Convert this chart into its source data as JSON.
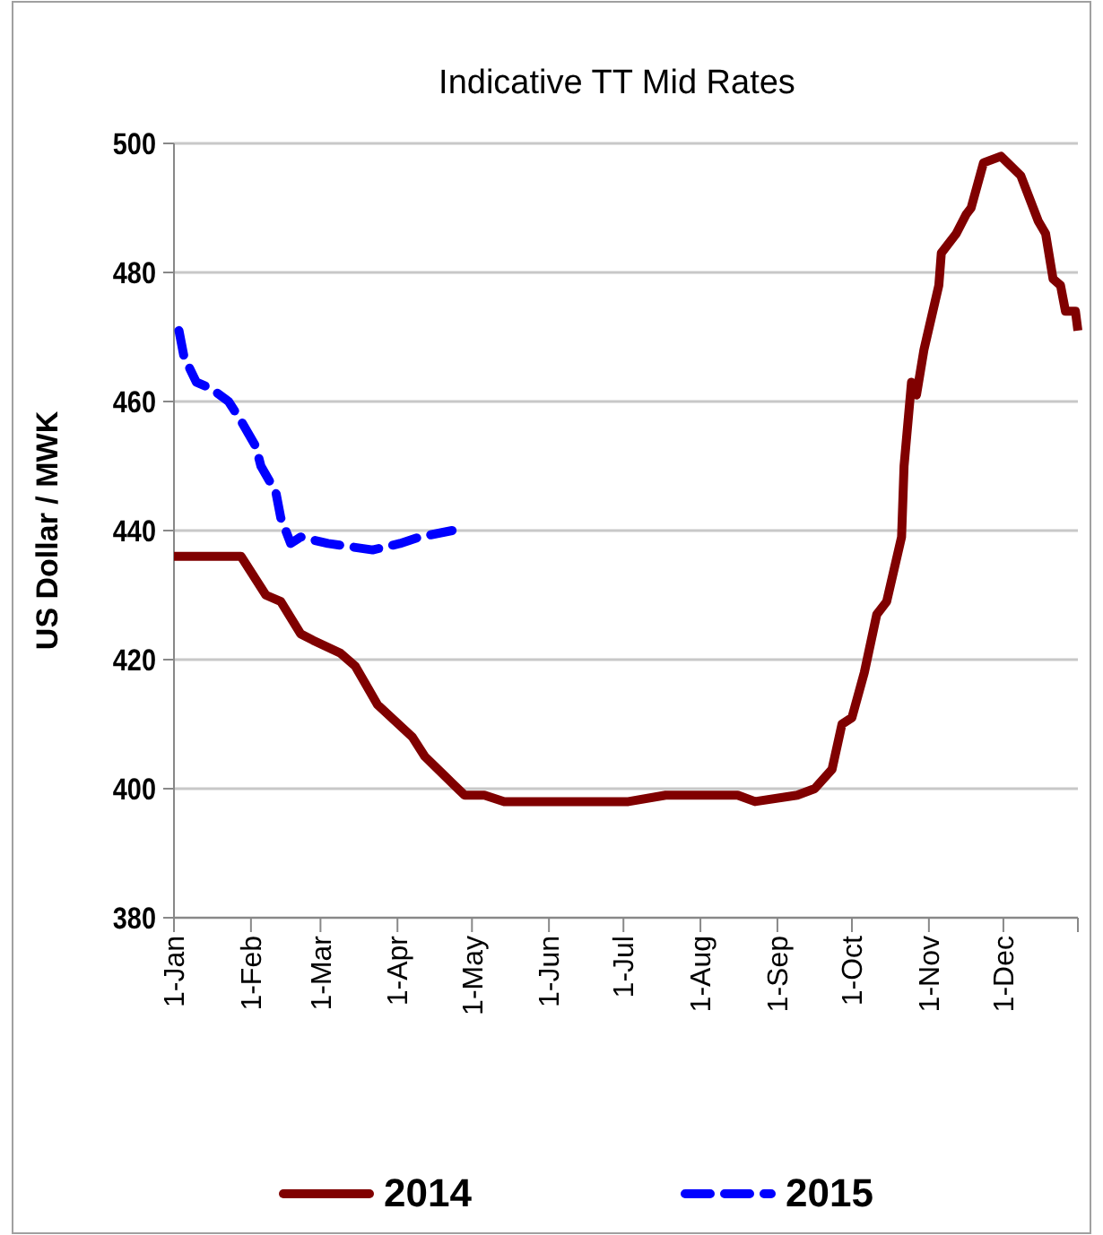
{
  "chart_data": {
    "type": "line",
    "title": "Indicative TT Mid Rates",
    "ylabel": "US Dollar / MWK",
    "xlim": [
      "--01-01",
      "--12-31"
    ],
    "xticks": [
      {
        "value": "--01-01",
        "label": "1-Jan"
      },
      {
        "value": "--02-01",
        "label": "1-Feb"
      },
      {
        "value": "--03-01",
        "label": "1-Mar"
      },
      {
        "value": "--04-01",
        "label": "1-Apr"
      },
      {
        "value": "--05-01",
        "label": "1-May"
      },
      {
        "value": "--06-01",
        "label": "1-Jun"
      },
      {
        "value": "--07-01",
        "label": "1-Jul"
      },
      {
        "value": "--08-01",
        "label": "1-Aug"
      },
      {
        "value": "--09-01",
        "label": "1-Sep"
      },
      {
        "value": "--10-01",
        "label": "1-Oct"
      },
      {
        "value": "--11-01",
        "label": "1-Nov"
      },
      {
        "value": "--12-01",
        "label": "1-Dec"
      }
    ],
    "ylim": [
      380,
      500
    ],
    "yticks": [
      380,
      400,
      420,
      440,
      460,
      480,
      500
    ],
    "grid": "y",
    "legend": "bottom",
    "marker": "none",
    "series": [
      {
        "name": "2014",
        "color": "#800000",
        "line_style": "solid",
        "x": [
          "--01-01",
          "--01-28",
          "--02-07",
          "--02-13",
          "--02-21",
          "--02-26",
          "--03-09",
          "--03-15",
          "--03-24",
          "--04-07",
          "--04-12",
          "--04-20",
          "--04-28",
          "--05-06",
          "--05-14",
          "--05-19",
          "--06-14",
          "--07-03",
          "--07-18",
          "--08-16",
          "--08-23",
          "--09-09",
          "--09-16",
          "--09-23",
          "--09-27",
          "--10-01",
          "--10-06",
          "--10-11",
          "--10-15",
          "--10-18",
          "--10-21",
          "--10-22",
          "--10-25",
          "--10-27",
          "--10-30",
          "--11-05",
          "--11-06",
          "--11-12",
          "--11-16",
          "--11-18",
          "--11-23",
          "--11-30",
          "--12-08",
          "--12-15",
          "--12-18",
          "--12-21",
          "--12-24",
          "--12-26",
          "--12-30",
          "--12-31"
        ],
        "values": [
          436,
          436,
          430,
          429,
          424,
          423,
          421,
          419,
          413,
          408,
          405,
          402,
          399,
          399,
          398,
          398,
          398,
          398,
          399,
          399,
          398,
          399,
          400,
          403,
          410,
          411,
          418,
          427,
          429,
          434,
          439,
          450,
          463,
          461,
          468,
          478,
          483,
          486,
          489,
          490,
          497,
          498,
          495,
          488,
          486,
          479,
          478,
          474,
          474,
          471
        ]
      },
      {
        "name": "2015",
        "color": "#0000ff",
        "line_style": "dashed",
        "x": [
          "--01-03",
          "--01-05",
          "--01-10",
          "--01-16",
          "--01-23",
          "--01-28",
          "--02-03",
          "--02-05",
          "--02-11",
          "--02-13",
          "--02-17",
          "--02-21",
          "--03-04",
          "--03-22",
          "--04-02",
          "--04-10",
          "--04-23"
        ],
        "values": [
          471,
          467,
          463,
          462,
          460,
          457,
          453,
          450,
          446,
          442,
          438,
          439,
          438,
          437,
          438,
          439,
          440
        ]
      }
    ]
  }
}
